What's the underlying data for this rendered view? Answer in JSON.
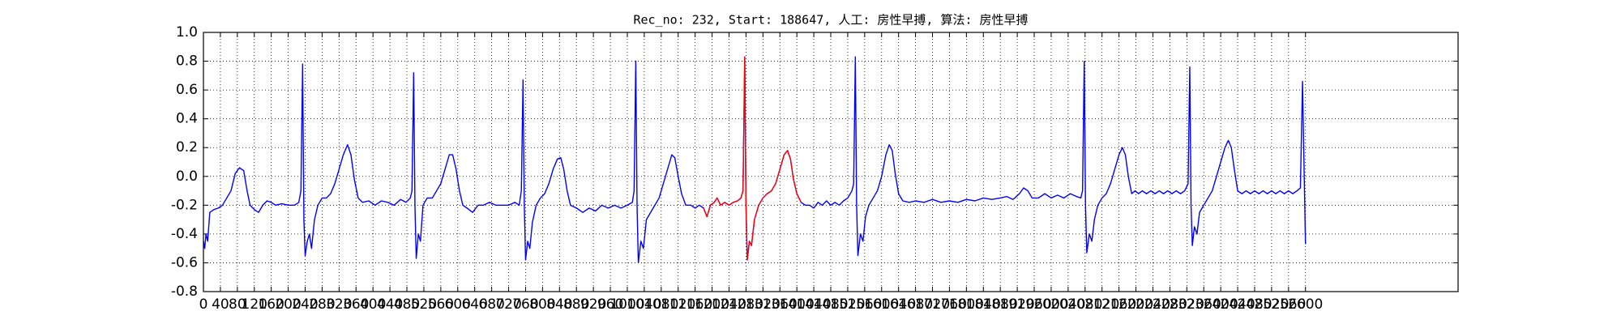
{
  "chart_data": {
    "type": "line",
    "title": "Rec_no: 232, Start: 188647, 人工: 房性早搏, 算法: 房性早搏",
    "xlim": [
      0,
      2960
    ],
    "ylim": [
      -0.8,
      1.0
    ],
    "xticks": [
      0,
      40,
      80,
      120,
      160,
      200,
      240,
      280,
      320,
      360,
      400,
      440,
      480,
      520,
      560,
      600,
      640,
      680,
      720,
      760,
      800,
      840,
      880,
      920,
      960,
      1000,
      1040,
      1080,
      1120,
      1160,
      1200,
      1240,
      1280,
      1320,
      1360,
      1400,
      1440,
      1480,
      1520,
      1560,
      1600,
      1640,
      1680,
      1720,
      1760,
      1800,
      1840,
      1880,
      1920,
      1960,
      2000,
      2040,
      2080,
      2120,
      2160,
      2200,
      2240,
      2280,
      2320,
      2360,
      2400,
      2440,
      2480,
      2520,
      2560,
      2600
    ],
    "yticks": [
      -0.8,
      -0.6,
      -0.4,
      -0.2,
      {
        "value": 0,
        "label": "0.0"
      },
      0.2,
      0.4,
      0.6,
      0.8,
      {
        "value": 1,
        "label": "1.0"
      }
    ],
    "grid": true,
    "series": [
      {
        "color": "#0000ff",
        "x": [
          0,
          3,
          6,
          10,
          15,
          25,
          35,
          45,
          55,
          65,
          75,
          85,
          95,
          103,
          110,
          120,
          130,
          140,
          150,
          160,
          170,
          185,
          200,
          215,
          225,
          230,
          234,
          237,
          240,
          245,
          250,
          255,
          262,
          270,
          280,
          290,
          300,
          310,
          320,
          330,
          340,
          348,
          356,
          365,
          375,
          390,
          405,
          420,
          435,
          450,
          465,
          478,
          488,
          492,
          496,
          499,
          502,
          507,
          512,
          518,
          528,
          540,
          550,
          560,
          570,
          580,
          588,
          596,
          604,
          612,
          622,
          635,
          648,
          660,
          675,
          690,
          705,
          720,
          735,
          745,
          750,
          754,
          757,
          760,
          765,
          770,
          776,
          785,
          795,
          805,
          815,
          825,
          835,
          843,
          850,
          858,
          866,
          880,
          895,
          910,
          925,
          940,
          955,
          970,
          985,
          1000,
          1012,
          1016,
          1020,
          1023,
          1026,
          1032,
          1038,
          1045,
          1055,
          1065,
          1075,
          1085,
          1095,
          1105,
          1112,
          1120,
          1128,
          1138,
          1150,
          1160,
          1170,
          1180,
          1188,
          1196,
          1205,
          1212,
          1220,
          1230,
          1240,
          1250,
          1260,
          1268,
          1273,
          1277,
          1280,
          1283,
          1288,
          1293,
          1300,
          1310,
          1320,
          1330,
          1340,
          1350,
          1360,
          1370,
          1378,
          1385,
          1392,
          1400,
          1410,
          1420,
          1430,
          1440,
          1450,
          1460,
          1470,
          1480,
          1490,
          1500,
          1510,
          1520,
          1530,
          1534,
          1538,
          1541,
          1544,
          1550,
          1556,
          1562,
          1570,
          1580,
          1590,
          1600,
          1610,
          1618,
          1625,
          1632,
          1640,
          1650,
          1665,
          1680,
          1700,
          1720,
          1740,
          1760,
          1780,
          1800,
          1820,
          1840,
          1860,
          1880,
          1895,
          1910,
          1925,
          1935,
          1945,
          1955,
          1970,
          1985,
          2000,
          2015,
          2030,
          2045,
          2060,
          2070,
          2074,
          2078,
          2081,
          2084,
          2090,
          2096,
          2102,
          2110,
          2120,
          2130,
          2140,
          2150,
          2160,
          2168,
          2175,
          2182,
          2190,
          2198,
          2206,
          2215,
          2225,
          2235,
          2245,
          2255,
          2265,
          2275,
          2285,
          2295,
          2305,
          2315,
          2323,
          2327,
          2330,
          2333,
          2338,
          2344,
          2350,
          2360,
          2370,
          2380,
          2390,
          2400,
          2410,
          2418,
          2425,
          2432,
          2440,
          2450,
          2460,
          2470,
          2480,
          2490,
          2500,
          2510,
          2520,
          2530,
          2540,
          2550,
          2560,
          2570,
          2580,
          2588,
          2593,
          2597,
          2600
        ],
        "values": [
          -0.45,
          -0.5,
          -0.4,
          -0.45,
          -0.25,
          -0.23,
          -0.22,
          -0.2,
          -0.15,
          -0.1,
          0.02,
          0.06,
          0.04,
          -0.1,
          -0.2,
          -0.23,
          -0.25,
          -0.2,
          -0.17,
          -0.18,
          -0.2,
          -0.19,
          -0.2,
          -0.2,
          -0.18,
          -0.1,
          0.78,
          -0.3,
          -0.55,
          -0.45,
          -0.4,
          -0.5,
          -0.3,
          -0.2,
          -0.15,
          -0.15,
          -0.12,
          -0.05,
          0.05,
          0.15,
          0.22,
          0.15,
          -0.02,
          -0.15,
          -0.18,
          -0.17,
          -0.2,
          -0.17,
          -0.18,
          -0.2,
          -0.16,
          -0.18,
          -0.15,
          -0.1,
          0.72,
          -0.2,
          -0.57,
          -0.4,
          -0.45,
          -0.2,
          -0.15,
          -0.15,
          -0.1,
          -0.05,
          0.05,
          0.15,
          0.15,
          0.05,
          -0.1,
          -0.2,
          -0.22,
          -0.25,
          -0.2,
          -0.2,
          -0.18,
          -0.2,
          -0.2,
          -0.2,
          -0.18,
          -0.2,
          -0.1,
          0.67,
          -0.2,
          -0.58,
          -0.45,
          -0.5,
          -0.32,
          -0.2,
          -0.15,
          -0.12,
          -0.05,
          0.05,
          0.12,
          0.13,
          0.05,
          -0.1,
          -0.2,
          -0.22,
          -0.25,
          -0.22,
          -0.24,
          -0.2,
          -0.22,
          -0.2,
          -0.22,
          -0.2,
          -0.18,
          -0.1,
          0.8,
          -0.2,
          -0.6,
          -0.45,
          -0.5,
          -0.3,
          -0.25,
          -0.2,
          -0.15,
          -0.05,
          0.05,
          0.15,
          0.13,
          0.0,
          -0.12,
          -0.2,
          -0.2,
          -0.22,
          -0.2,
          -0.22,
          -0.28,
          -0.2,
          -0.18,
          -0.15,
          -0.2,
          -0.18,
          -0.2,
          -0.18,
          -0.17,
          -0.15,
          -0.1,
          0.83,
          -0.2,
          -0.58,
          -0.45,
          -0.48,
          -0.3,
          -0.2,
          -0.15,
          -0.12,
          -0.1,
          -0.05,
          0.05,
          0.15,
          0.18,
          0.12,
          -0.02,
          -0.12,
          -0.18,
          -0.2,
          -0.2,
          -0.22,
          -0.18,
          -0.2,
          -0.17,
          -0.2,
          -0.18,
          -0.2,
          -0.17,
          -0.15,
          -0.1,
          -0.05,
          0.83,
          -0.2,
          -0.55,
          -0.4,
          -0.45,
          -0.28,
          -0.2,
          -0.15,
          -0.1,
          0.0,
          0.15,
          0.22,
          0.18,
          0.02,
          -0.12,
          -0.17,
          -0.18,
          -0.17,
          -0.18,
          -0.16,
          -0.18,
          -0.17,
          -0.18,
          -0.16,
          -0.17,
          -0.15,
          -0.16,
          -0.15,
          -0.14,
          -0.16,
          -0.12,
          -0.08,
          -0.1,
          -0.15,
          -0.15,
          -0.12,
          -0.15,
          -0.13,
          -0.15,
          -0.12,
          -0.14,
          -0.15,
          -0.1,
          0.8,
          -0.2,
          -0.53,
          -0.4,
          -0.45,
          -0.3,
          -0.2,
          -0.15,
          -0.12,
          -0.05,
          0.05,
          0.15,
          0.2,
          0.15,
          0.0,
          -0.12,
          -0.1,
          -0.12,
          -0.1,
          -0.12,
          -0.1,
          -0.12,
          -0.1,
          -0.12,
          -0.1,
          -0.12,
          -0.1,
          -0.12,
          -0.1,
          -0.05,
          0.76,
          -0.2,
          -0.48,
          -0.35,
          -0.4,
          -0.25,
          -0.2,
          -0.15,
          -0.1,
          0.0,
          0.1,
          0.2,
          0.25,
          0.2,
          0.05,
          -0.1,
          -0.12,
          -0.1,
          -0.12,
          -0.1,
          -0.12,
          -0.1,
          -0.12,
          -0.1,
          -0.12,
          -0.1,
          -0.12,
          -0.1,
          -0.12,
          -0.1,
          -0.08,
          0.66,
          0.0,
          -0.47
        ]
      },
      {
        "color": "#ff0000",
        "x": [
          1180,
          1188,
          1196,
          1205,
          1212,
          1220,
          1230,
          1240,
          1250,
          1260,
          1268,
          1273,
          1277,
          1280,
          1283,
          1288,
          1293,
          1300,
          1310,
          1320,
          1330,
          1340,
          1350,
          1360,
          1370,
          1378,
          1385,
          1392,
          1400,
          1410
        ],
        "values": [
          -0.22,
          -0.28,
          -0.2,
          -0.18,
          -0.15,
          -0.2,
          -0.18,
          -0.2,
          -0.18,
          -0.17,
          -0.15,
          -0.1,
          0.83,
          -0.2,
          -0.58,
          -0.45,
          -0.48,
          -0.3,
          -0.2,
          -0.15,
          -0.12,
          -0.1,
          -0.05,
          0.05,
          0.15,
          0.18,
          0.12,
          -0.02,
          -0.12,
          -0.18
        ]
      }
    ]
  }
}
